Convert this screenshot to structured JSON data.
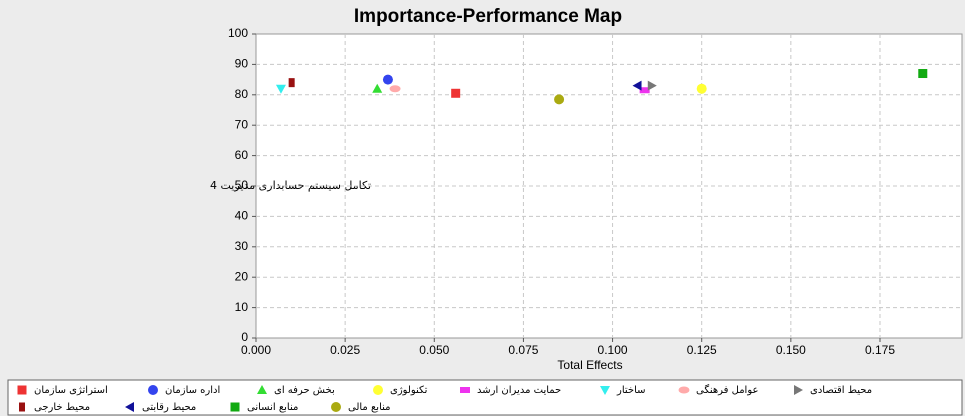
{
  "chart_data": {
    "type": "scatter",
    "title": "Importance-Performance Map",
    "x_label": "Total Effects",
    "y_label": "تکامل سیستم حسابداری مدیریت 4",
    "xlim": [
      0,
      0.198
    ],
    "ylim": [
      0,
      100
    ],
    "xticks": [
      {
        "value": 0,
        "label": "0.000"
      },
      {
        "value": 0.025,
        "label": "0.025"
      },
      {
        "value": 0.05,
        "label": "0.050"
      },
      {
        "value": 0.075,
        "label": "0.075"
      },
      {
        "value": 0.1,
        "label": "0.100"
      },
      {
        "value": 0.125,
        "label": "0.125"
      },
      {
        "value": 0.15,
        "label": "0.150"
      },
      {
        "value": 0.175,
        "label": "0.175"
      }
    ],
    "yticks": [
      0,
      10,
      20,
      30,
      40,
      50,
      60,
      70,
      80,
      90,
      100
    ],
    "grid": true,
    "series": [
      {
        "name": "استراتژی سازمان",
        "color": "#ee3333",
        "marker": "square",
        "x": [
          0.056
        ],
        "values": [
          80.5
        ]
      },
      {
        "name": "اداره سازمان",
        "color": "#3344ee",
        "marker": "circle",
        "x": [
          0.037
        ],
        "values": [
          85
        ]
      },
      {
        "name": "بخش حرفه ای",
        "color": "#33dd33",
        "marker": "triangle-up",
        "x": [
          0.034
        ],
        "values": [
          82
        ]
      },
      {
        "name": "تکنولوژی",
        "color": "#ffff33",
        "marker": "circle",
        "x": [
          0.125
        ],
        "values": [
          82
        ]
      },
      {
        "name": "حمایت مدیران ارشد",
        "color": "#ee33ee",
        "marker": "rect",
        "x": [
          0.109
        ],
        "values": [
          81.5
        ]
      },
      {
        "name": "ساختار",
        "color": "#33eeee",
        "marker": "triangle-down",
        "x": [
          0.007
        ],
        "values": [
          82
        ]
      },
      {
        "name": "عوامل فرهنگی",
        "color": "#ffaaaa",
        "marker": "ellipse",
        "x": [
          0.039
        ],
        "values": [
          82
        ]
      },
      {
        "name": "محیط اقتصادی",
        "color": "#777777",
        "marker": "triangle-right",
        "x": [
          0.111
        ],
        "values": [
          83
        ]
      },
      {
        "name": "محیط خارجی",
        "color": "#991111",
        "marker": "thin-rect",
        "x": [
          0.01
        ],
        "values": [
          84
        ]
      },
      {
        "name": "محیط رقابتی",
        "color": "#111199",
        "marker": "triangle-left",
        "x": [
          0.107
        ],
        "values": [
          83
        ]
      },
      {
        "name": "منابع انسانی",
        "color": "#11aa11",
        "marker": "square",
        "x": [
          0.187
        ],
        "values": [
          87
        ]
      },
      {
        "name": "منابع مالی",
        "color": "#aaaa11",
        "marker": "circle",
        "x": [
          0.085
        ],
        "values": [
          78.5
        ]
      }
    ]
  }
}
